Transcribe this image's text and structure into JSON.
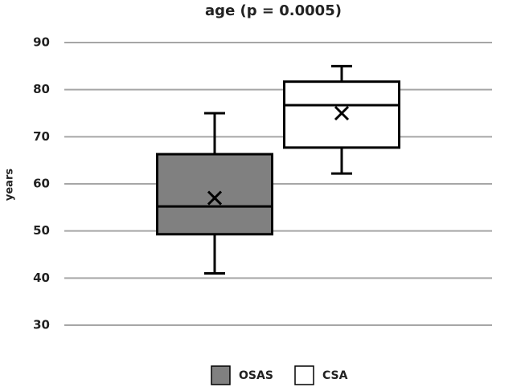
{
  "chart_data": {
    "type": "box",
    "title": "age (p = 0.0005)",
    "y_label": "years",
    "ylim": [
      30,
      90
    ],
    "yticks": [
      30,
      40,
      50,
      60,
      70,
      80,
      90
    ],
    "grid": true,
    "series": [
      {
        "name": "OSAS",
        "color": "#808080",
        "min": 41,
        "q1": 49.3,
        "median": 55.2,
        "q3": 66.3,
        "max": 75,
        "mean": 57
      },
      {
        "name": "CSA",
        "color": "#ffffff",
        "min": 62.2,
        "q1": 67.7,
        "median": 76.7,
        "q3": 81.7,
        "max": 85,
        "mean": 75
      }
    ]
  }
}
